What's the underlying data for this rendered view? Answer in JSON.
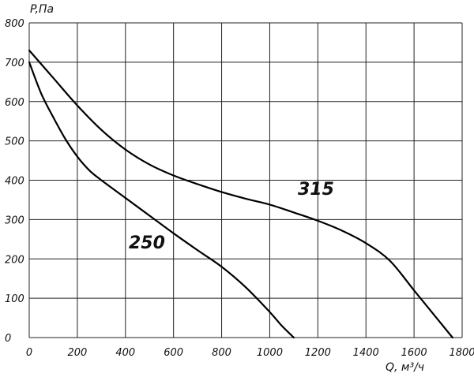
{
  "chart_data": {
    "type": "line",
    "title": "",
    "xlabel": "Q, м³/ч",
    "ylabel": "P,Па",
    "xlim": [
      0,
      1800
    ],
    "ylim": [
      0,
      800
    ],
    "x_ticks": [
      0,
      200,
      400,
      600,
      800,
      1000,
      1200,
      1400,
      1600,
      1800
    ],
    "y_ticks": [
      0,
      100,
      200,
      300,
      400,
      500,
      600,
      700,
      800
    ],
    "grid": true,
    "legend": "none",
    "series": [
      {
        "name": "250",
        "points": [
          [
            0,
            700
          ],
          [
            50,
            620
          ],
          [
            100,
            560
          ],
          [
            150,
            505
          ],
          [
            200,
            460
          ],
          [
            250,
            425
          ],
          [
            300,
            400
          ],
          [
            400,
            355
          ],
          [
            500,
            310
          ],
          [
            600,
            265
          ],
          [
            700,
            222
          ],
          [
            800,
            180
          ],
          [
            900,
            128
          ],
          [
            1000,
            65
          ],
          [
            1050,
            30
          ],
          [
            1100,
            0
          ]
        ]
      },
      {
        "name": "315",
        "points": [
          [
            0,
            730
          ],
          [
            100,
            660
          ],
          [
            200,
            590
          ],
          [
            300,
            528
          ],
          [
            400,
            478
          ],
          [
            500,
            440
          ],
          [
            600,
            412
          ],
          [
            700,
            390
          ],
          [
            800,
            370
          ],
          [
            900,
            353
          ],
          [
            1000,
            338
          ],
          [
            1100,
            318
          ],
          [
            1200,
            297
          ],
          [
            1300,
            272
          ],
          [
            1400,
            240
          ],
          [
            1500,
            195
          ],
          [
            1600,
            120
          ],
          [
            1700,
            45
          ],
          [
            1760,
            0
          ]
        ]
      }
    ]
  }
}
